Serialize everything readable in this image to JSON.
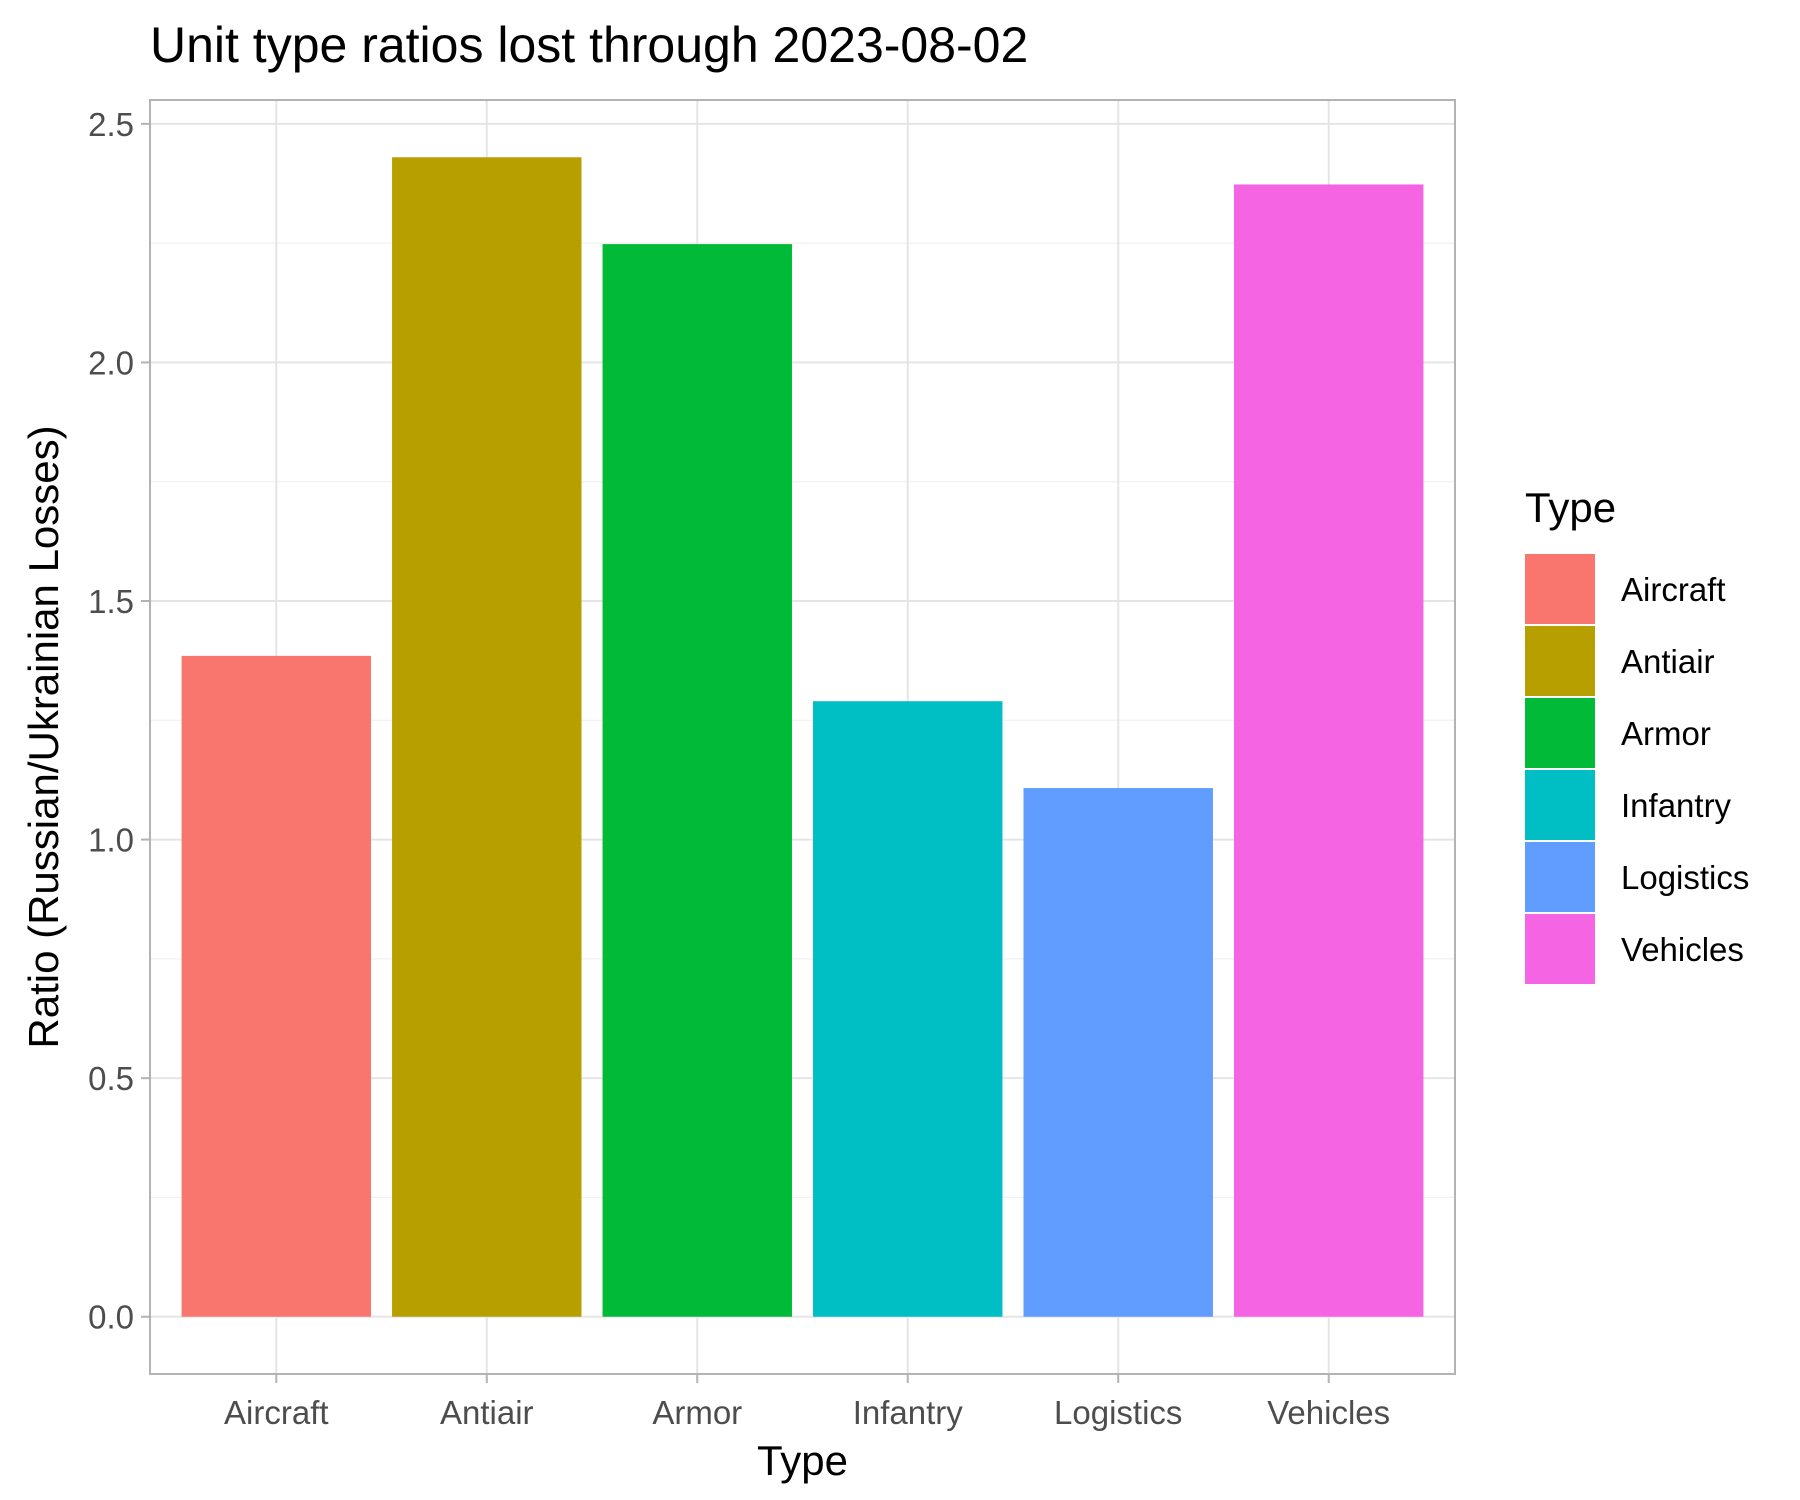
{
  "chart_data": {
    "type": "bar",
    "title": "Unit type ratios lost through 2023-08-02",
    "xlabel": "Type",
    "ylabel": "Ratio (Russian/Ukrainian Losses)",
    "categories": [
      "Aircraft",
      "Antiair",
      "Armor",
      "Infantry",
      "Logistics",
      "Vehicles"
    ],
    "values": [
      1.385,
      2.43,
      2.248,
      1.29,
      1.108,
      2.373
    ],
    "colors": [
      "#F8766D",
      "#B79F00",
      "#00BA38",
      "#00BFC4",
      "#619CFF",
      "#F564E3"
    ],
    "ylim": [
      -0.12,
      2.55
    ],
    "yticks": [
      0.0,
      0.5,
      1.0,
      1.5,
      2.0,
      2.5
    ],
    "ytick_labels": [
      "0.0",
      "0.5",
      "1.0",
      "1.5",
      "2.0",
      "2.5"
    ],
    "grid": true,
    "legend": {
      "title": "Type",
      "placement": "right",
      "entries": [
        "Aircraft",
        "Antiair",
        "Armor",
        "Infantry",
        "Logistics",
        "Vehicles"
      ]
    }
  }
}
